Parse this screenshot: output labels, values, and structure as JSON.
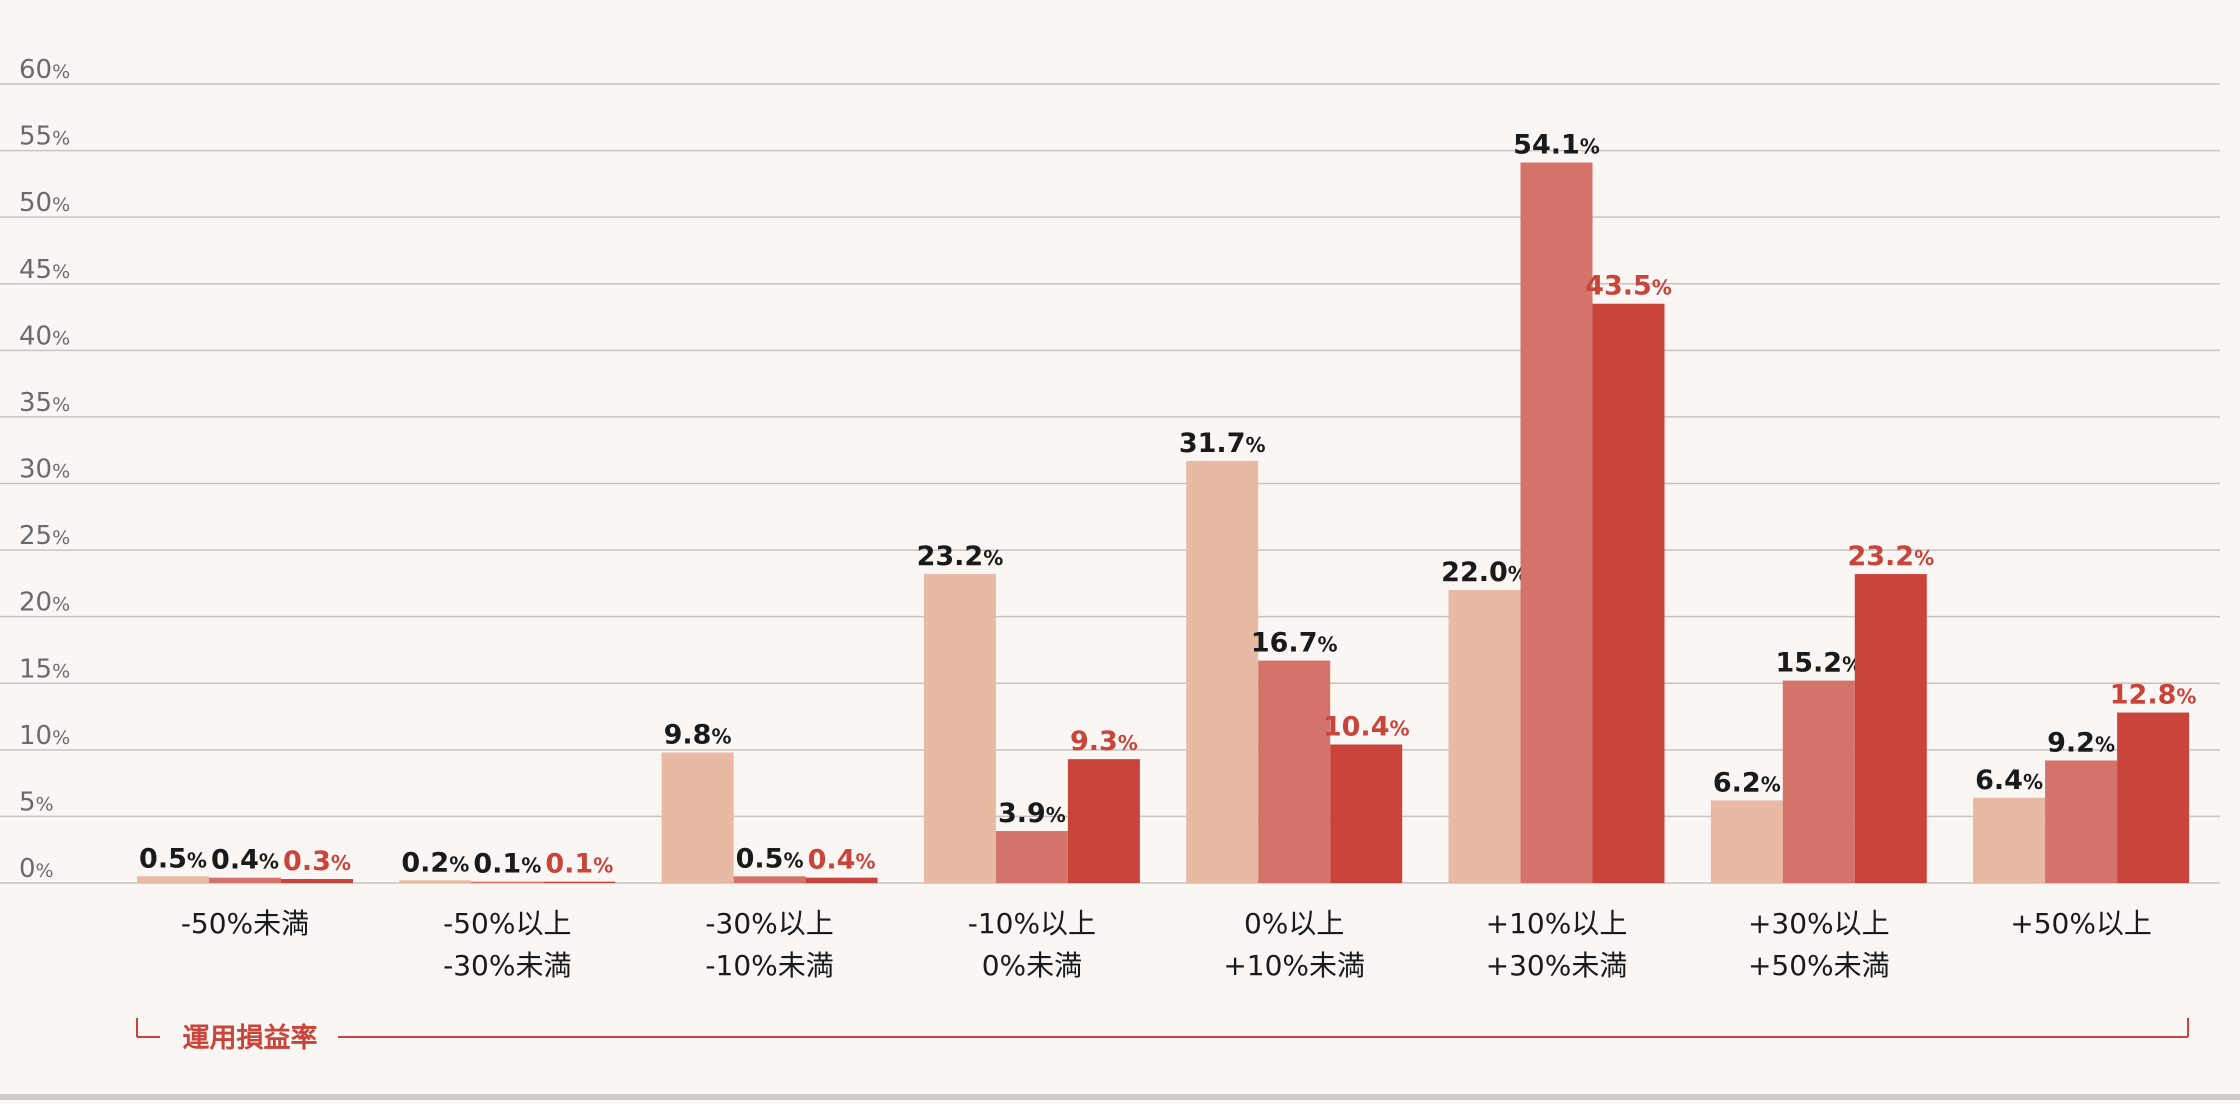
{
  "colors": {
    "background": "#f9f6f3",
    "gridline": "#c8c4c1",
    "tick_text": "#6b6b6b",
    "label_text": "#1a1a1a",
    "accent": "#c9443a",
    "series": [
      "#e8b9a3",
      "#d4736a",
      "#c9443a"
    ]
  },
  "chart_data": {
    "type": "bar",
    "categories": [
      [
        "-50%未満"
      ],
      [
        "-50%以上",
        "-30%未満"
      ],
      [
        "-30%以上",
        "-10%未満"
      ],
      [
        "-10%以上",
        "0%未満"
      ],
      [
        "0%以上",
        "+10%未満"
      ],
      [
        "+10%以上",
        "+30%未満"
      ],
      [
        "+30%以上",
        "+50%未満"
      ],
      [
        "+50%以上"
      ]
    ],
    "series": [
      {
        "values": [
          0.5,
          0.2,
          9.8,
          23.2,
          31.7,
          22.0,
          6.2,
          6.4
        ]
      },
      {
        "values": [
          0.4,
          0.1,
          0.5,
          3.9,
          16.7,
          54.1,
          15.2,
          9.2
        ]
      },
      {
        "values": [
          0.3,
          0.1,
          0.4,
          9.3,
          10.4,
          43.5,
          23.2,
          12.8
        ]
      }
    ],
    "value_suffix": "%",
    "ylim": [
      0,
      60
    ],
    "yticks": [
      0,
      5,
      10,
      15,
      20,
      25,
      30,
      35,
      40,
      45,
      50,
      55,
      60
    ],
    "ytick_suffix": "%",
    "grid": true,
    "xlabel": "運用損益率"
  }
}
